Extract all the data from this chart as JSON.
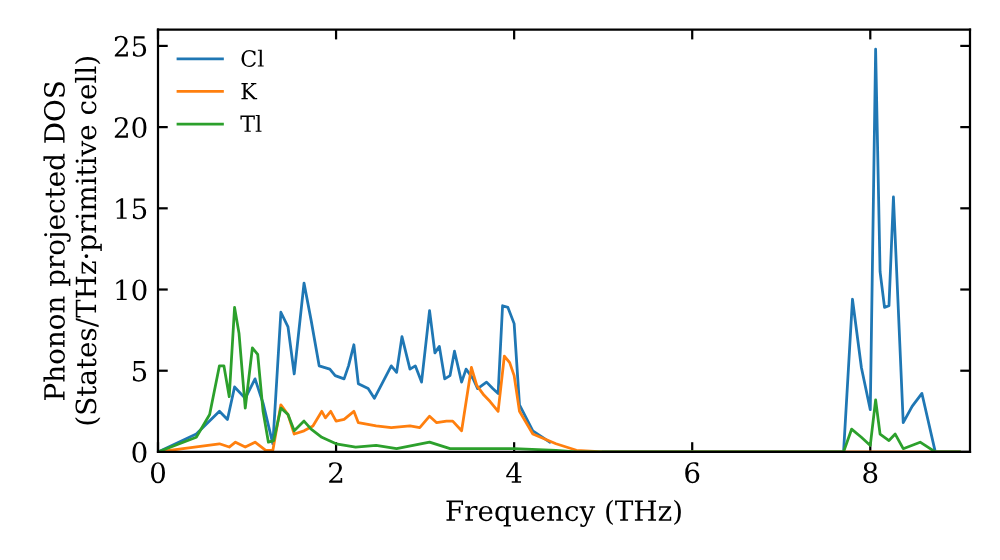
{
  "chart_data": {
    "type": "line",
    "xlabel": "Frequency (THz)",
    "ylabel": "Phonon projected DOS\n(States/THz·primitive cell)",
    "xlim": [
      0,
      9.12
    ],
    "ylim": [
      0,
      26
    ],
    "xticks": [
      0,
      2,
      4,
      6,
      8
    ],
    "yticks": [
      0,
      5,
      10,
      15,
      20,
      25
    ],
    "grid": false,
    "legend": "top left",
    "series": [
      {
        "name": "Cl",
        "color": "#1f77b4",
        "x": [
          0,
          0.43,
          0.69,
          0.78,
          0.86,
          0.98,
          1.09,
          1.18,
          1.29,
          1.38,
          1.46,
          1.53,
          1.64,
          1.72,
          1.81,
          1.93,
          1.99,
          2.09,
          2.14,
          2.2,
          2.25,
          2.36,
          2.43,
          2.62,
          2.68,
          2.74,
          2.83,
          2.89,
          2.96,
          3.05,
          3.11,
          3.16,
          3.22,
          3.28,
          3.33,
          3.41,
          3.46,
          3.54,
          3.59,
          3.69,
          3.76,
          3.82,
          3.87,
          3.93,
          4.0,
          4.06,
          4.21,
          4.4,
          4.7,
          5.0,
          7.7,
          7.8,
          7.9,
          8.0,
          8.06,
          8.11,
          8.16,
          8.21,
          8.26,
          8.31,
          8.37,
          8.47,
          8.58,
          8.73,
          9.0
        ],
        "values": [
          0,
          1.1,
          2.5,
          2.0,
          4.0,
          3.3,
          4.5,
          3.0,
          0.5,
          8.6,
          7.7,
          4.8,
          10.4,
          8.1,
          5.3,
          5.1,
          4.7,
          4.5,
          5.3,
          6.6,
          4.2,
          3.9,
          3.3,
          5.3,
          4.9,
          7.1,
          5.1,
          5.3,
          4.3,
          8.7,
          6.1,
          6.5,
          4.5,
          4.7,
          6.2,
          4.3,
          5.1,
          4.5,
          3.9,
          4.3,
          3.9,
          3.6,
          9.0,
          8.9,
          7.9,
          2.9,
          1.3,
          0.6,
          null,
          0,
          0,
          9.4,
          5.2,
          2.6,
          24.8,
          11.1,
          8.9,
          9.0,
          15.7,
          9.4,
          1.8,
          2.8,
          3.6,
          0,
          0
        ]
      },
      {
        "name": "K",
        "color": "#ff7f0e",
        "x": [
          0,
          0.69,
          0.8,
          0.87,
          0.98,
          1.09,
          1.21,
          1.29,
          1.38,
          1.46,
          1.53,
          1.64,
          1.74,
          1.84,
          1.88,
          1.94,
          2.0,
          2.09,
          2.2,
          2.25,
          2.45,
          2.62,
          2.83,
          2.94,
          3.05,
          3.13,
          3.24,
          3.31,
          3.41,
          3.52,
          3.58,
          3.66,
          3.73,
          3.82,
          3.89,
          3.95,
          4.0,
          4.06,
          4.21,
          4.47,
          4.7,
          5.0,
          9.0
        ],
        "values": [
          0,
          0.5,
          0.3,
          0.6,
          0.3,
          0.6,
          0.1,
          0.1,
          2.9,
          2.3,
          1.1,
          1.3,
          1.6,
          2.5,
          2.1,
          2.5,
          1.9,
          2.0,
          2.5,
          1.8,
          1.6,
          1.5,
          1.6,
          1.5,
          2.2,
          1.8,
          1.9,
          1.9,
          1.3,
          5.2,
          4.1,
          3.5,
          3.1,
          2.5,
          5.9,
          5.5,
          4.7,
          2.5,
          1.1,
          0.5,
          0.1,
          0,
          0
        ]
      },
      {
        "name": "Tl",
        "color": "#2ca02c",
        "x": [
          0,
          0.43,
          0.58,
          0.69,
          0.74,
          0.8,
          0.86,
          0.91,
          0.98,
          1.06,
          1.12,
          1.18,
          1.24,
          1.3,
          1.38,
          1.46,
          1.53,
          1.64,
          1.72,
          1.84,
          2.0,
          2.22,
          2.45,
          2.68,
          3.05,
          3.28,
          3.58,
          4.0,
          4.47,
          4.7,
          7.7,
          7.79,
          7.9,
          8.0,
          8.06,
          8.11,
          8.21,
          8.28,
          8.37,
          8.56,
          8.73,
          9.0
        ],
        "values": [
          0,
          0.9,
          2.3,
          5.3,
          5.3,
          3.4,
          8.9,
          7.3,
          2.7,
          6.4,
          6.0,
          2.5,
          0.6,
          0.7,
          2.7,
          2.3,
          1.3,
          1.9,
          1.4,
          0.9,
          0.5,
          0.3,
          0.4,
          0.2,
          0.6,
          0.2,
          0.2,
          0.2,
          0.1,
          0,
          0,
          1.4,
          0.9,
          0.4,
          3.2,
          1.1,
          0.7,
          1.1,
          0.2,
          0.6,
          0,
          0
        ]
      }
    ]
  }
}
